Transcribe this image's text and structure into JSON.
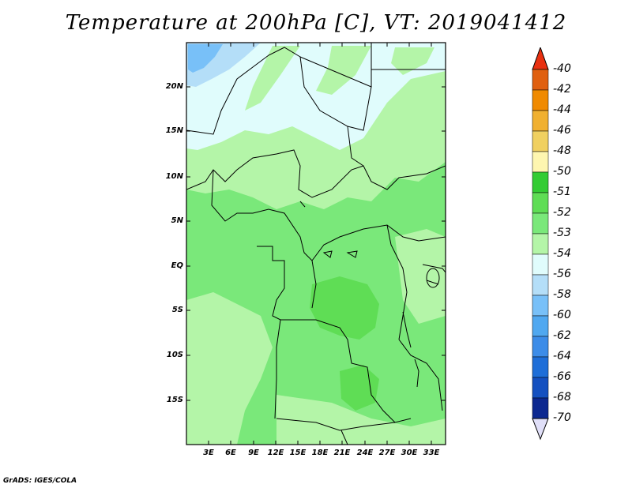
{
  "title": "Temperature at 200hPa [C], VT: 2019041412",
  "credit": "GrADS: IGES/COLA",
  "lat_labels": [
    "20N",
    "15N",
    "10N",
    "5N",
    "EQ",
    "5S",
    "10S",
    "15S"
  ],
  "lon_labels": [
    "3E",
    "6E",
    "9E",
    "12E",
    "15E",
    "18E",
    "21E",
    "24E",
    "27E",
    "30E",
    "33E"
  ],
  "colorbar": {
    "labels": [
      "-40",
      "-42",
      "-44",
      "-46",
      "-48",
      "-50",
      "-51",
      "-52",
      "-53",
      "-54",
      "-56",
      "-58",
      "-60",
      "-62",
      "-64",
      "-66",
      "-68",
      "-70"
    ],
    "colors": [
      "#f06028",
      "#e06010",
      "#f08a00",
      "#f0b030",
      "#f0d060",
      "#fef6b0",
      "#33cc33",
      "#5fdd55",
      "#7ae87a",
      "#b4f5a8",
      "#e0fcfc",
      "#b4def8",
      "#78c0f8",
      "#50a8f0",
      "#3c8ce8",
      "#1e6ed8",
      "#1450c0",
      "#0c2890"
    ],
    "top_arrow_color": "#e83010",
    "bottom_arrow_color": "#e0dff8"
  },
  "map_colors": {
    "lightest": "#e0fcfc",
    "blue": "#b4def8",
    "blue_dark": "#78c0f8",
    "pale_green": "#b4f5a8",
    "green": "#7ae87a",
    "mid_green": "#5fdd55",
    "dark_green": "#33cc33"
  }
}
